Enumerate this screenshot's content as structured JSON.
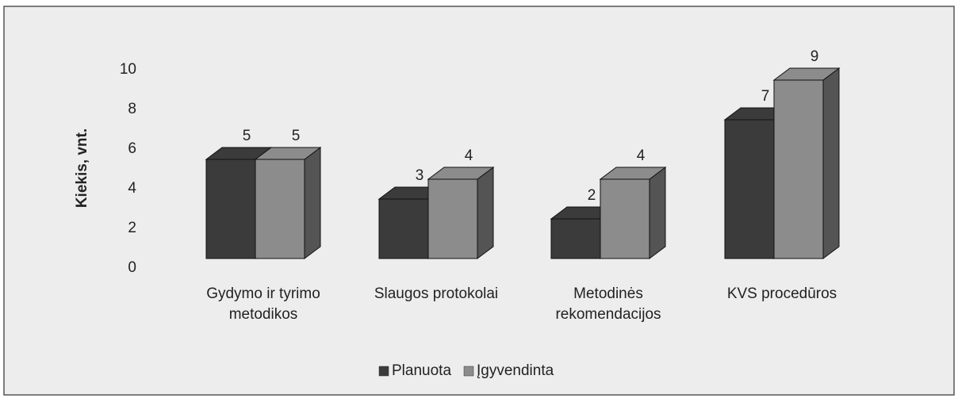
{
  "chart_data": {
    "type": "bar3d",
    "y_label": "Kiekis, vnt.",
    "categories": [
      "Gydymo ir tyrimo metodikos",
      "Slaugos protokolai",
      "Metodinės rekomendacijos",
      "KVS procedūros"
    ],
    "series": [
      {
        "name": "Planuota",
        "color": "#3b3b3b",
        "values": [
          5,
          3,
          2,
          7
        ]
      },
      {
        "name": "Įgyvendinta",
        "color": "#8c8c8c",
        "values": [
          5,
          4,
          4,
          9
        ]
      }
    ],
    "ylim": [
      0,
      10
    ],
    "yticks": [
      0,
      2,
      4,
      6,
      8,
      10
    ],
    "legend": "bottom",
    "grid": false
  }
}
